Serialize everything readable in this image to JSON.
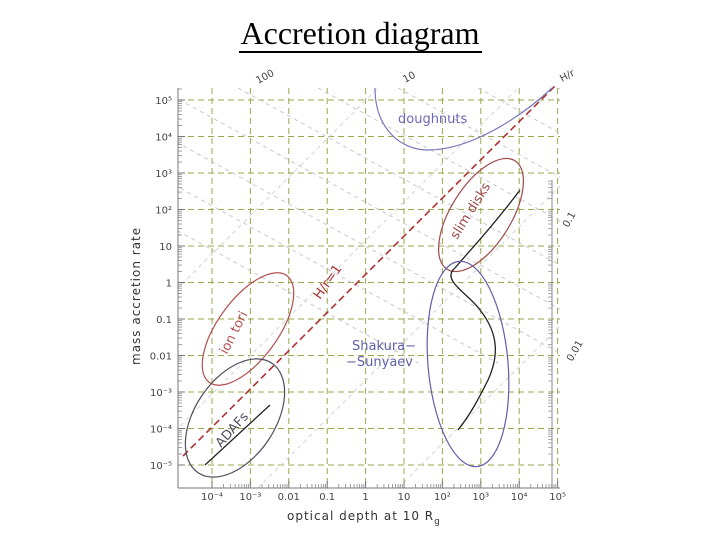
{
  "title": "Accretion diagram",
  "axes": {
    "xlabel": "optical depth at 10 R",
    "xlabel_sub": "g",
    "ylabel": "mass accretion rate",
    "x_ticks": [
      "10⁻⁴",
      "10⁻³",
      "0.01",
      "0.1",
      "1",
      "10",
      "10²",
      "10³",
      "10⁴",
      "10⁵"
    ],
    "y_ticks": [
      "10⁵",
      "10⁴",
      "10³",
      "10²",
      "10",
      "1",
      "0.1",
      "0.01",
      "10⁻³",
      "10⁻⁴",
      "10⁻⁵"
    ]
  },
  "contour_labels": {
    "top_100": "100",
    "top_10": "10",
    "right_01": "0.1",
    "right_001": "0.01",
    "h_over_r": "H/r"
  },
  "regions": {
    "doughnuts": "doughnuts",
    "slim_disks": "slim disks",
    "hr1": "H/r=1",
    "ion_tori": "ion tori",
    "shakura_1": "Shakura−",
    "shakura_2": "−Sunyaev",
    "adafs": "ADAFs"
  },
  "colors": {
    "doughnuts": "#7a78c0",
    "slim": "#a04848",
    "ion_tori": "#b45050",
    "adaf": "#4e4e5e",
    "shakura": "#5f5fa8",
    "hr_line": "#b03030",
    "grid_dash": "#9aa84e"
  }
}
